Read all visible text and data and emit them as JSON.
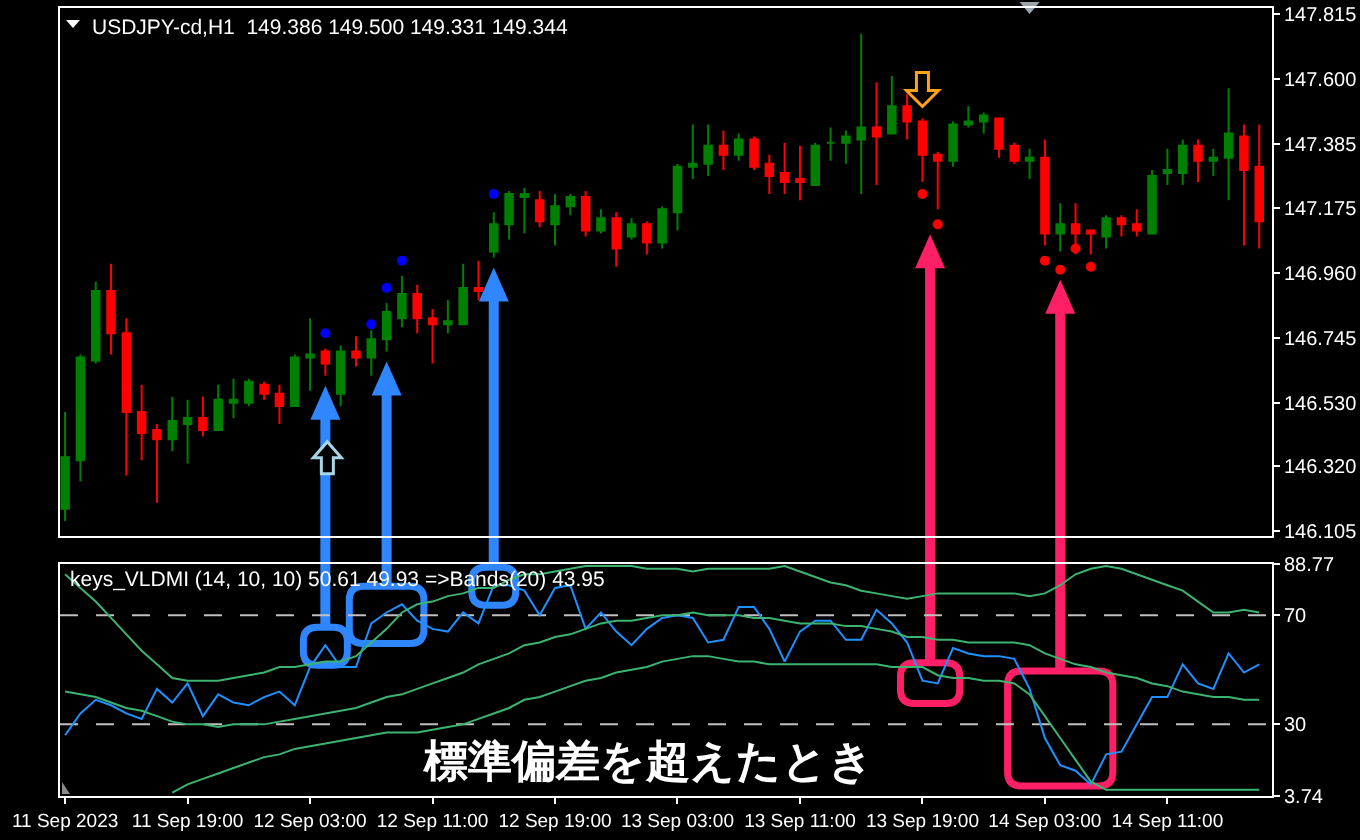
{
  "chart_data": [
    {
      "type": "candlestick",
      "title": "USDJPY-cd,H1  149.386 149.500 149.331 149.344",
      "x": [
        "2023-09-11T11:00",
        "2023-09-11T12:00",
        "2023-09-11T13:00",
        "2023-09-11T14:00",
        "2023-09-11T15:00",
        "2023-09-11T16:00",
        "2023-09-11T17:00",
        "2023-09-11T18:00",
        "2023-09-11T19:00",
        "2023-09-11T20:00",
        "2023-09-11T21:00",
        "2023-09-11T22:00",
        "2023-09-11T23:00",
        "2023-09-12T00:00",
        "2023-09-12T01:00",
        "2023-09-12T02:00",
        "2023-09-12T03:00",
        "2023-09-12T04:00",
        "2023-09-12T05:00",
        "2023-09-12T06:00",
        "2023-09-12T07:00",
        "2023-09-12T08:00",
        "2023-09-12T09:00",
        "2023-09-12T10:00",
        "2023-09-12T11:00",
        "2023-09-12T12:00",
        "2023-09-12T13:00",
        "2023-09-12T14:00",
        "2023-09-12T15:00",
        "2023-09-12T16:00",
        "2023-09-12T17:00",
        "2023-09-12T18:00",
        "2023-09-12T19:00",
        "2023-09-12T20:00",
        "2023-09-12T21:00",
        "2023-09-12T22:00",
        "2023-09-12T23:00",
        "2023-09-13T00:00",
        "2023-09-13T01:00",
        "2023-09-13T02:00",
        "2023-09-13T03:00",
        "2023-09-13T04:00",
        "2023-09-13T05:00",
        "2023-09-13T06:00",
        "2023-09-13T07:00",
        "2023-09-13T08:00",
        "2023-09-13T09:00",
        "2023-09-13T10:00",
        "2023-09-13T11:00",
        "2023-09-13T12:00",
        "2023-09-13T13:00",
        "2023-09-13T14:00",
        "2023-09-13T15:00",
        "2023-09-13T16:00",
        "2023-09-13T17:00",
        "2023-09-13T18:00",
        "2023-09-13T19:00",
        "2023-09-13T20:00",
        "2023-09-13T21:00",
        "2023-09-13T22:00",
        "2023-09-13T23:00",
        "2023-09-14T00:00",
        "2023-09-14T01:00",
        "2023-09-14T02:00",
        "2023-09-14T03:00",
        "2023-09-14T04:00",
        "2023-09-14T05:00",
        "2023-09-14T06:00",
        "2023-09-14T07:00",
        "2023-09-14T08:00",
        "2023-09-14T09:00",
        "2023-09-14T10:00",
        "2023-09-14T11:00",
        "2023-09-14T12:00",
        "2023-09-14T13:00",
        "2023-09-14T14:00",
        "2023-09-14T15:00",
        "2023-09-14T16:00",
        "2023-09-14T17:00"
      ],
      "ohlc": [
        [
          146.18,
          146.5,
          146.14,
          146.35
        ],
        [
          146.34,
          146.69,
          146.27,
          146.68
        ],
        [
          146.67,
          146.93,
          146.66,
          146.9
        ],
        [
          146.9,
          146.99,
          146.69,
          146.76
        ],
        [
          146.76,
          146.81,
          146.29,
          146.5
        ],
        [
          146.5,
          146.59,
          146.34,
          146.43
        ],
        [
          146.44,
          146.46,
          146.2,
          146.41
        ],
        [
          146.41,
          146.55,
          146.37,
          146.47
        ],
        [
          146.46,
          146.54,
          146.33,
          146.48
        ],
        [
          146.48,
          146.55,
          146.42,
          146.44
        ],
        [
          146.44,
          146.59,
          146.44,
          146.54
        ],
        [
          146.53,
          146.61,
          146.48,
          146.54
        ],
        [
          146.53,
          146.61,
          146.52,
          146.6
        ],
        [
          146.59,
          146.6,
          146.54,
          146.56
        ],
        [
          146.56,
          146.59,
          146.46,
          146.52
        ],
        [
          146.52,
          146.69,
          146.52,
          146.68
        ],
        [
          146.68,
          146.81,
          146.57,
          146.69
        ],
        [
          146.7,
          146.71,
          146.62,
          146.66
        ],
        [
          146.56,
          146.72,
          146.52,
          146.7
        ],
        [
          146.7,
          146.75,
          146.65,
          146.68
        ],
        [
          146.68,
          146.77,
          146.62,
          146.74
        ],
        [
          146.74,
          146.86,
          146.7,
          146.83
        ],
        [
          146.81,
          146.95,
          146.78,
          146.89
        ],
        [
          146.89,
          146.92,
          146.76,
          146.81
        ],
        [
          146.81,
          146.84,
          146.66,
          146.79
        ],
        [
          146.79,
          146.87,
          146.76,
          146.8
        ],
        [
          146.79,
          146.99,
          146.79,
          146.91
        ],
        [
          146.91,
          147.0,
          146.87,
          146.9
        ],
        [
          147.03,
          147.16,
          147.01,
          147.12
        ],
        [
          147.12,
          147.23,
          147.07,
          147.22
        ],
        [
          147.21,
          147.24,
          147.09,
          147.22
        ],
        [
          147.2,
          147.23,
          147.11,
          147.13
        ],
        [
          147.12,
          147.22,
          147.05,
          147.18
        ],
        [
          147.18,
          147.22,
          147.15,
          147.21
        ],
        [
          147.21,
          147.23,
          147.08,
          147.1
        ],
        [
          147.1,
          147.17,
          147.09,
          147.14
        ],
        [
          147.14,
          147.16,
          146.98,
          147.04
        ],
        [
          147.08,
          147.14,
          147.07,
          147.12
        ],
        [
          147.12,
          147.13,
          147.02,
          147.06
        ],
        [
          147.06,
          147.18,
          147.04,
          147.17
        ],
        [
          147.16,
          147.32,
          147.1,
          147.31
        ],
        [
          147.31,
          147.45,
          147.27,
          147.32
        ],
        [
          147.32,
          147.45,
          147.28,
          147.38
        ],
        [
          147.38,
          147.43,
          147.3,
          147.35
        ],
        [
          147.35,
          147.42,
          147.33,
          147.4
        ],
        [
          147.4,
          147.41,
          147.3,
          147.31
        ],
        [
          147.32,
          147.35,
          147.22,
          147.28
        ],
        [
          147.29,
          147.39,
          147.22,
          147.26
        ],
        [
          147.27,
          147.38,
          147.2,
          147.26
        ],
        [
          147.25,
          147.39,
          147.25,
          147.38
        ],
        [
          147.39,
          147.44,
          147.33,
          147.39
        ],
        [
          147.39,
          147.43,
          147.32,
          147.41
        ],
        [
          147.4,
          147.75,
          147.22,
          147.44
        ],
        [
          147.44,
          147.59,
          147.25,
          147.41
        ],
        [
          147.42,
          147.61,
          147.42,
          147.51
        ],
        [
          147.51,
          147.55,
          147.4,
          147.46
        ],
        [
          147.46,
          147.47,
          147.26,
          147.35
        ],
        [
          147.35,
          147.36,
          147.17,
          147.33
        ],
        [
          147.33,
          147.46,
          147.31,
          147.45
        ],
        [
          147.45,
          147.51,
          147.44,
          147.46
        ],
        [
          147.46,
          147.49,
          147.42,
          147.48
        ],
        [
          147.47,
          147.47,
          147.34,
          147.37
        ],
        [
          147.38,
          147.39,
          147.32,
          147.33
        ],
        [
          147.33,
          147.37,
          147.27,
          147.34
        ],
        [
          147.34,
          147.4,
          147.05,
          147.09
        ],
        [
          147.09,
          147.19,
          147.03,
          147.12
        ],
        [
          147.12,
          147.19,
          147.02,
          147.09
        ],
        [
          147.1,
          147.1,
          147.02,
          147.09
        ],
        [
          147.08,
          147.15,
          147.04,
          147.14
        ],
        [
          147.14,
          147.15,
          147.08,
          147.12
        ],
        [
          147.12,
          147.17,
          147.08,
          147.1
        ],
        [
          147.09,
          147.3,
          147.09,
          147.28
        ],
        [
          147.29,
          147.37,
          147.25,
          147.3
        ],
        [
          147.29,
          147.4,
          147.25,
          147.38
        ],
        [
          147.38,
          147.4,
          147.26,
          147.33
        ],
        [
          147.33,
          147.37,
          147.28,
          147.34
        ],
        [
          147.34,
          147.57,
          147.2,
          147.42
        ],
        [
          147.41,
          147.45,
          147.05,
          147.3
        ],
        [
          147.31,
          147.45,
          147.04,
          147.13
        ]
      ],
      "colors": [
        "#008000",
        "#008000",
        "#008000",
        "#ff0000",
        "#ff0000",
        "#ff0000",
        "#ff0000",
        "#008000",
        "#008000",
        "#ff0000",
        "#008000",
        "#008000",
        "#008000",
        "#ff0000",
        "#ff0000",
        "#008000",
        "#008000",
        "#ff0000",
        "#008000",
        "#ff0000",
        "#008000",
        "#008000",
        "#008000",
        "#ff0000",
        "#ff0000",
        "#008000",
        "#008000",
        "#ff0000",
        "#008000",
        "#008000",
        "#008000",
        "#ff0000",
        "#008000",
        "#008000",
        "#ff0000",
        "#008000",
        "#ff0000",
        "#008000",
        "#ff0000",
        "#008000",
        "#008000",
        "#008000",
        "#008000",
        "#ff0000",
        "#008000",
        "#ff0000",
        "#ff0000",
        "#ff0000",
        "#ff0000",
        "#008000",
        "#008000",
        "#008000",
        "#008000",
        "#ff0000",
        "#008000",
        "#ff0000",
        "#ff0000",
        "#ff0000",
        "#008000",
        "#008000",
        "#008000",
        "#ff0000",
        "#ff0000",
        "#008000",
        "#ff0000",
        "#008000",
        "#ff0000",
        "#ff0000",
        "#008000",
        "#ff0000",
        "#ff0000",
        "#008000",
        "#008000",
        "#008000",
        "#ff0000",
        "#008000",
        "#008000",
        "#ff0000",
        "#ff0000"
      ],
      "series": [
        {
          "type": "scatter",
          "color": "#0000ff",
          "x": [
            "2023-09-12T04:00",
            "2023-09-12T07:00",
            "2023-09-12T08:00",
            "2023-09-12T09:00",
            "2023-09-12T15:00"
          ],
          "values": [
            146.76,
            146.79,
            146.91,
            147.0,
            147.22
          ]
        },
        {
          "type": "scatter",
          "color": "#ff0000",
          "x": [
            "2023-09-13T19:00",
            "2023-09-13T20:00",
            "2023-09-14T03:00",
            "2023-09-14T04:00",
            "2023-09-14T05:00",
            "2023-09-14T06:00"
          ],
          "values": [
            147.22,
            147.12,
            147.0,
            146.97,
            147.04,
            146.98
          ]
        }
      ],
      "xlim": [
        "2023-09-11T10:40",
        "2023-09-14T17:50"
      ],
      "ylim": [
        146.09,
        147.835
      ],
      "yticks": [
        146.105,
        {
          "value": 146.32,
          "label": "146.320"
        },
        {
          "value": 146.53,
          "label": "146.530"
        },
        146.745,
        {
          "value": 146.96,
          "label": "146.960"
        },
        147.175,
        147.385,
        {
          "value": 147.6,
          "label": "147.600"
        },
        147.815
      ],
      "tick_labels": "y"
    },
    {
      "type": "line",
      "title": "keys_VLDMI (14, 10, 10) 50.61 49.93 =>Bands(20) 43.95",
      "x": [
        "2023-09-11T11:00",
        "2023-09-11T12:00",
        "2023-09-11T13:00",
        "2023-09-11T14:00",
        "2023-09-11T15:00",
        "2023-09-11T16:00",
        "2023-09-11T17:00",
        "2023-09-11T18:00",
        "2023-09-11T19:00",
        "2023-09-11T20:00",
        "2023-09-11T21:00",
        "2023-09-11T22:00",
        "2023-09-11T23:00",
        "2023-09-12T00:00",
        "2023-09-12T01:00",
        "2023-09-12T02:00",
        "2023-09-12T03:00",
        "2023-09-12T04:00",
        "2023-09-12T05:00",
        "2023-09-12T06:00",
        "2023-09-12T07:00",
        "2023-09-12T08:00",
        "2023-09-12T09:00",
        "2023-09-12T10:00",
        "2023-09-12T11:00",
        "2023-09-12T12:00",
        "2023-09-12T13:00",
        "2023-09-12T14:00",
        "2023-09-12T15:00",
        "2023-09-12T16:00",
        "2023-09-12T17:00",
        "2023-09-12T18:00",
        "2023-09-12T19:00",
        "2023-09-12T20:00",
        "2023-09-12T21:00",
        "2023-09-12T22:00",
        "2023-09-12T23:00",
        "2023-09-13T00:00",
        "2023-09-13T01:00",
        "2023-09-13T02:00",
        "2023-09-13T03:00",
        "2023-09-13T04:00",
        "2023-09-13T05:00",
        "2023-09-13T06:00",
        "2023-09-13T07:00",
        "2023-09-13T08:00",
        "2023-09-13T09:00",
        "2023-09-13T10:00",
        "2023-09-13T11:00",
        "2023-09-13T12:00",
        "2023-09-13T13:00",
        "2023-09-13T14:00",
        "2023-09-13T15:00",
        "2023-09-13T16:00",
        "2023-09-13T17:00",
        "2023-09-13T18:00",
        "2023-09-13T19:00",
        "2023-09-13T20:00",
        "2023-09-13T21:00",
        "2023-09-13T22:00",
        "2023-09-13T23:00",
        "2023-09-14T00:00",
        "2023-09-14T01:00",
        "2023-09-14T02:00",
        "2023-09-14T03:00",
        "2023-09-14T04:00",
        "2023-09-14T05:00",
        "2023-09-14T06:00",
        "2023-09-14T07:00",
        "2023-09-14T08:00",
        "2023-09-14T09:00",
        "2023-09-14T10:00",
        "2023-09-14T11:00",
        "2023-09-14T12:00",
        "2023-09-14T13:00",
        "2023-09-14T14:00",
        "2023-09-14T15:00",
        "2023-09-14T16:00",
        "2023-09-14T17:00"
      ],
      "series": [
        {
          "color": "#1e90ff",
          "values": [
            26,
            34,
            39,
            37,
            34,
            32,
            43,
            38,
            45,
            33,
            41,
            38,
            37,
            40,
            42,
            37,
            51,
            59,
            51,
            51,
            67,
            71,
            74,
            68,
            65,
            64,
            71,
            67,
            81,
            81,
            79,
            70,
            80,
            81,
            65,
            71,
            64,
            59,
            65,
            69,
            70,
            69,
            60,
            61,
            73,
            73,
            65,
            53,
            64,
            68,
            68,
            61,
            61,
            72,
            67,
            60,
            46,
            45,
            58,
            56,
            55,
            55,
            54,
            43,
            25,
            15,
            13,
            8,
            19,
            20,
            30,
            40,
            40,
            52,
            45,
            43,
            56,
            49,
            52
          ]
        },
        {
          "color": "#3cb371",
          "values": [
            85,
            80,
            75,
            69,
            63,
            57,
            52,
            47,
            46,
            46,
            46,
            47,
            48,
            49,
            51,
            51,
            52,
            53,
            53,
            55,
            60,
            65,
            71,
            74,
            75,
            77,
            78,
            80,
            80,
            83,
            85,
            85,
            86,
            87,
            88,
            88,
            88,
            88,
            87,
            87,
            87,
            86,
            87,
            87,
            87,
            87,
            87,
            88,
            86,
            84,
            82,
            81,
            79,
            78,
            77,
            76,
            77,
            78,
            78,
            78,
            78,
            78,
            78,
            77,
            78,
            81,
            85,
            87,
            88,
            87,
            85,
            83,
            81,
            79,
            75,
            71,
            71,
            72,
            71
          ]
        },
        {
          "color": "#3cb371",
          "values": [
            42,
            41,
            40,
            38,
            36,
            35,
            33,
            31,
            30,
            30,
            29,
            30,
            30,
            30,
            31,
            32,
            33,
            34,
            35,
            36,
            38,
            40,
            41,
            43,
            45,
            47,
            49,
            52,
            54,
            56,
            59,
            60,
            62,
            63,
            65,
            67,
            68,
            68,
            69,
            70,
            70,
            71,
            70,
            70,
            70,
            69,
            69,
            68,
            67,
            67,
            67,
            66,
            66,
            65,
            64,
            62,
            62,
            61,
            61,
            60,
            60,
            60,
            60,
            59,
            56,
            54,
            52,
            51,
            49,
            48,
            47,
            45,
            44,
            42,
            41,
            40,
            40,
            39,
            39
          ]
        },
        {
          "color": "#3cb371",
          "values": [
            null,
            null,
            null,
            null,
            null,
            null,
            null,
            5,
            8,
            10,
            12,
            14,
            16,
            18,
            19,
            21,
            22,
            23,
            24,
            25,
            26,
            27,
            27,
            27,
            28,
            29,
            30,
            32,
            34,
            36,
            39,
            40,
            42,
            44,
            46,
            47,
            49,
            50,
            51,
            53,
            54,
            55,
            55,
            54,
            53,
            53,
            52,
            52,
            52,
            52,
            52,
            52,
            52,
            52,
            51,
            51,
            51,
            48,
            47,
            47,
            46,
            46,
            45,
            41,
            33,
            25,
            17,
            9,
            6,
            6,
            6,
            6,
            6,
            6,
            6,
            6,
            6,
            6,
            6
          ]
        }
      ],
      "xlim": [
        "2023-09-11T10:40",
        "2023-09-14T17:50"
      ],
      "xticks": [
        {
          "value": "2023-09-11T11:00",
          "label": "11 Sep 2023"
        },
        {
          "value": "2023-09-11T19:00",
          "label": "11 Sep 19:00"
        },
        {
          "value": "2023-09-12T03:00",
          "label": "12 Sep 03:00"
        },
        {
          "value": "2023-09-12T11:00",
          "label": "12 Sep 11:00"
        },
        {
          "value": "2023-09-12T19:00",
          "label": "12 Sep 19:00"
        },
        {
          "value": "2023-09-13T03:00",
          "label": "13 Sep 03:00"
        },
        {
          "value": "2023-09-13T11:00",
          "label": "13 Sep 11:00"
        },
        {
          "value": "2023-09-13T19:00",
          "label": "13 Sep 19:00"
        },
        {
          "value": "2023-09-14T03:00",
          "label": "14 Sep 03:00"
        },
        {
          "value": "2023-09-14T11:00",
          "label": "14 Sep 11:00"
        }
      ],
      "ylim": [
        3.74,
        88.77
      ],
      "yticks": [
        3.74,
        30,
        70,
        88.77
      ],
      "ref_lines": [
        {
          "axis": "y",
          "value": 70,
          "color": "#c0c0c0",
          "line_style": "dashed"
        },
        {
          "axis": "y",
          "value": 30,
          "color": "#c0c0c0",
          "line_style": "dashed"
        }
      ],
      "annotations": [
        "標準偏差を超えたとき"
      ]
    }
  ]
}
